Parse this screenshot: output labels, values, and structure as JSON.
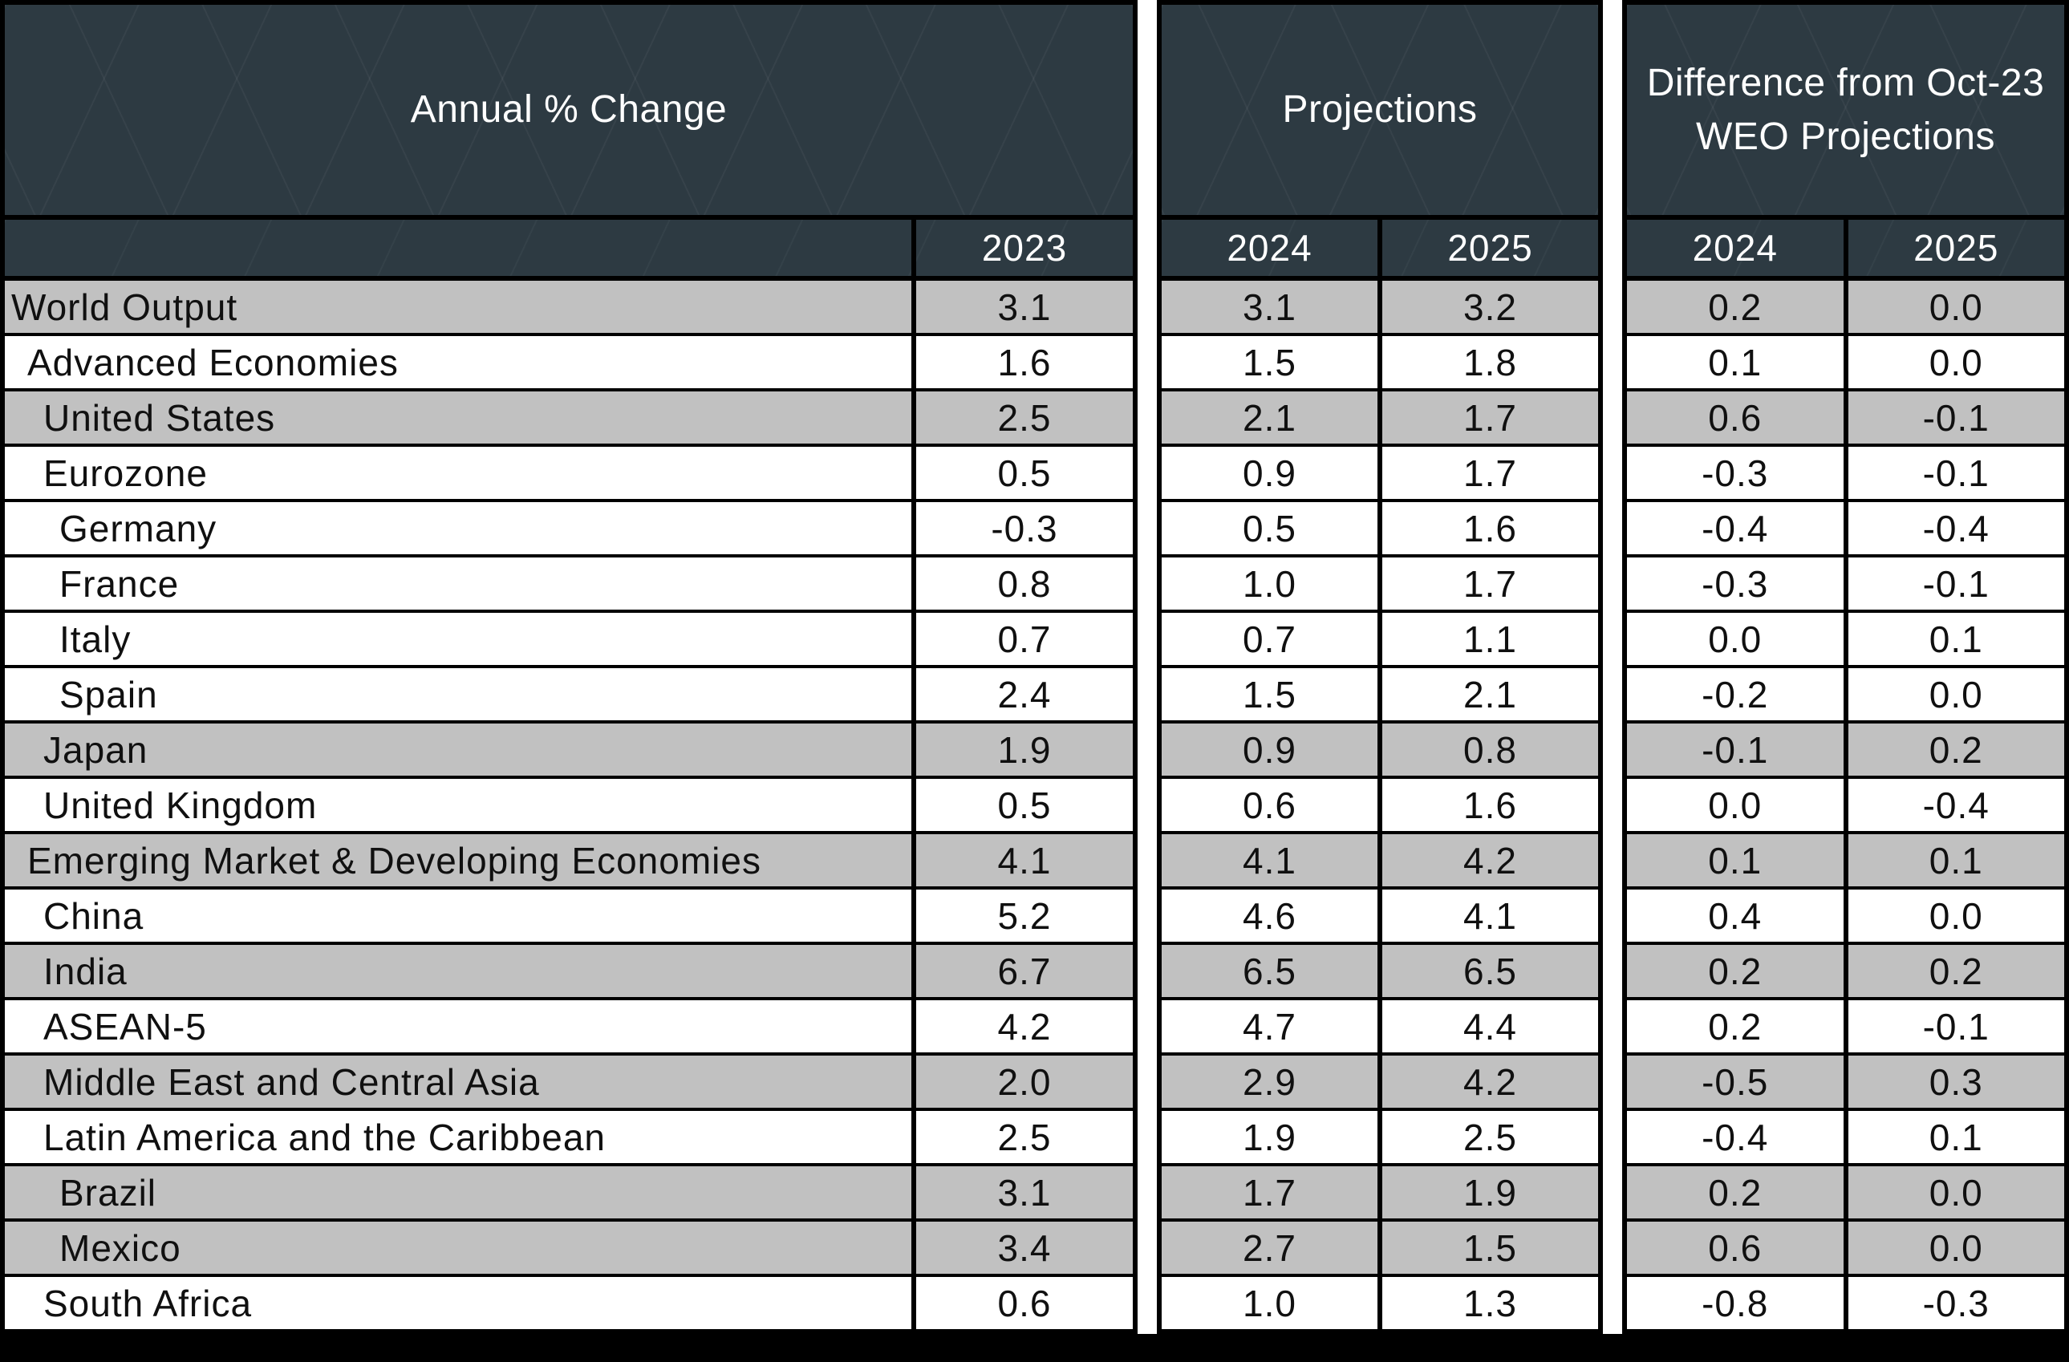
{
  "chart_data": {
    "type": "table",
    "sections": [
      {
        "title": "Annual % Change",
        "columns": [
          "2023"
        ],
        "fields": [
          "y2023"
        ],
        "label_column": true
      },
      {
        "title": "Projections",
        "columns": [
          "2024",
          "2025"
        ],
        "fields": [
          "p2024",
          "p2025"
        ],
        "label_column": false
      },
      {
        "title": "Difference from Oct-23 WEO Projections",
        "columns": [
          "2024",
          "2025"
        ],
        "fields": [
          "d2024",
          "d2025"
        ],
        "label_column": false
      }
    ],
    "rows": [
      {
        "label": "World Output",
        "indent": 0,
        "shade": "gray",
        "values": {
          "y2023": "3.1",
          "p2024": "3.1",
          "p2025": "3.2",
          "d2024": "0.2",
          "d2025": "0.0"
        }
      },
      {
        "label": "Advanced Economies",
        "indent": 1,
        "shade": "white",
        "values": {
          "y2023": "1.6",
          "p2024": "1.5",
          "p2025": "1.8",
          "d2024": "0.1",
          "d2025": "0.0"
        }
      },
      {
        "label": "United States",
        "indent": 2,
        "shade": "gray",
        "values": {
          "y2023": "2.5",
          "p2024": "2.1",
          "p2025": "1.7",
          "d2024": "0.6",
          "d2025": "-0.1"
        }
      },
      {
        "label": "Eurozone",
        "indent": 2,
        "shade": "white",
        "values": {
          "y2023": "0.5",
          "p2024": "0.9",
          "p2025": "1.7",
          "d2024": "-0.3",
          "d2025": "-0.1"
        }
      },
      {
        "label": "Germany",
        "indent": 3,
        "shade": "white",
        "values": {
          "y2023": "-0.3",
          "p2024": "0.5",
          "p2025": "1.6",
          "d2024": "-0.4",
          "d2025": "-0.4"
        }
      },
      {
        "label": "France",
        "indent": 3,
        "shade": "white",
        "values": {
          "y2023": "0.8",
          "p2024": "1.0",
          "p2025": "1.7",
          "d2024": "-0.3",
          "d2025": "-0.1"
        }
      },
      {
        "label": "Italy",
        "indent": 3,
        "shade": "white",
        "values": {
          "y2023": "0.7",
          "p2024": "0.7",
          "p2025": "1.1",
          "d2024": "0.0",
          "d2025": "0.1"
        }
      },
      {
        "label": "Spain",
        "indent": 3,
        "shade": "white",
        "values": {
          "y2023": "2.4",
          "p2024": "1.5",
          "p2025": "2.1",
          "d2024": "-0.2",
          "d2025": "0.0"
        }
      },
      {
        "label": "Japan",
        "indent": 2,
        "shade": "gray",
        "values": {
          "y2023": "1.9",
          "p2024": "0.9",
          "p2025": "0.8",
          "d2024": "-0.1",
          "d2025": "0.2"
        }
      },
      {
        "label": "United Kingdom",
        "indent": 2,
        "shade": "white",
        "values": {
          "y2023": "0.5",
          "p2024": "0.6",
          "p2025": "1.6",
          "d2024": "0.0",
          "d2025": "-0.4"
        }
      },
      {
        "label": "Emerging Market & Developing Economies",
        "indent": 1,
        "shade": "gray",
        "values": {
          "y2023": "4.1",
          "p2024": "4.1",
          "p2025": "4.2",
          "d2024": "0.1",
          "d2025": "0.1"
        }
      },
      {
        "label": "China",
        "indent": 2,
        "shade": "white",
        "values": {
          "y2023": "5.2",
          "p2024": "4.6",
          "p2025": "4.1",
          "d2024": "0.4",
          "d2025": "0.0"
        }
      },
      {
        "label": "India",
        "indent": 2,
        "shade": "gray",
        "values": {
          "y2023": "6.7",
          "p2024": "6.5",
          "p2025": "6.5",
          "d2024": "0.2",
          "d2025": "0.2"
        }
      },
      {
        "label": "ASEAN-5",
        "indent": 2,
        "shade": "white",
        "values": {
          "y2023": "4.2",
          "p2024": "4.7",
          "p2025": "4.4",
          "d2024": "0.2",
          "d2025": "-0.1"
        }
      },
      {
        "label": "Middle East and Central Asia",
        "indent": 2,
        "shade": "gray",
        "values": {
          "y2023": "2.0",
          "p2024": "2.9",
          "p2025": "4.2",
          "d2024": "-0.5",
          "d2025": "0.3"
        }
      },
      {
        "label": "Latin America and the Caribbean",
        "indent": 2,
        "shade": "white",
        "values": {
          "y2023": "2.5",
          "p2024": "1.9",
          "p2025": "2.5",
          "d2024": "-0.4",
          "d2025": "0.1"
        }
      },
      {
        "label": "Brazil",
        "indent": 3,
        "shade": "gray",
        "values": {
          "y2023": "3.1",
          "p2024": "1.7",
          "p2025": "1.9",
          "d2024": "0.2",
          "d2025": "0.0"
        }
      },
      {
        "label": "Mexico",
        "indent": 3,
        "shade": "gray",
        "values": {
          "y2023": "3.4",
          "p2024": "2.7",
          "p2025": "1.5",
          "d2024": "0.6",
          "d2025": "0.0"
        }
      },
      {
        "label": "South Africa",
        "indent": 2,
        "shade": "white",
        "values": {
          "y2023": "0.6",
          "p2024": "1.0",
          "p2025": "1.3",
          "d2024": "-0.8",
          "d2025": "-0.3"
        }
      }
    ]
  },
  "colors": {
    "header_bg": "#2d3a42",
    "header_text": "#ffffff",
    "row_gray": "#c1c1c1",
    "row_white": "#ffffff",
    "body_text": "#101010",
    "border": "#000000",
    "gap": "#ffffff",
    "bottom_band": "#000000"
  }
}
